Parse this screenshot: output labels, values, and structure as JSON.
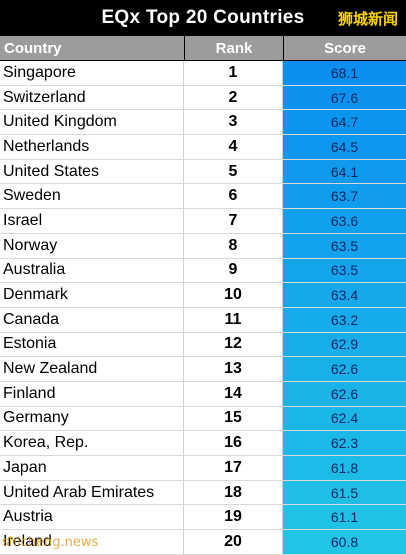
{
  "title": "EQx Top 20 Countries",
  "badge": "狮城新闻",
  "watermark": "shicheng.news",
  "colors": {
    "score_top": "#0a8ff0",
    "score_bottom": "#20c4e4",
    "header_bg": "#9c9c9c"
  },
  "chart_data": {
    "type": "table",
    "title": "EQx Top 20 Countries",
    "columns": [
      "Country",
      "Rank",
      "Score"
    ],
    "rows": [
      {
        "country": "Singapore",
        "rank": "1",
        "score": "68.1"
      },
      {
        "country": "Switzerland",
        "rank": "2",
        "score": "67.6"
      },
      {
        "country": "United Kingdom",
        "rank": "3",
        "score": "64.7"
      },
      {
        "country": "Netherlands",
        "rank": "4",
        "score": "64.5"
      },
      {
        "country": "United States",
        "rank": "5",
        "score": "64.1"
      },
      {
        "country": "Sweden",
        "rank": "6",
        "score": "63.7"
      },
      {
        "country": "Israel",
        "rank": "7",
        "score": "63.6"
      },
      {
        "country": "Norway",
        "rank": "8",
        "score": "63.5"
      },
      {
        "country": "Australia",
        "rank": "9",
        "score": "63.5"
      },
      {
        "country": "Denmark",
        "rank": "10",
        "score": "63.4"
      },
      {
        "country": "Canada",
        "rank": "11",
        "score": "63.2"
      },
      {
        "country": "Estonia",
        "rank": "12",
        "score": "62.9"
      },
      {
        "country": "New Zealand",
        "rank": "13",
        "score": "62.6"
      },
      {
        "country": "Finland",
        "rank": "14",
        "score": "62.6"
      },
      {
        "country": "Germany",
        "rank": "15",
        "score": "62.4"
      },
      {
        "country": "Korea, Rep.",
        "rank": "16",
        "score": "62.3"
      },
      {
        "country": "Japan",
        "rank": "17",
        "score": "61.8"
      },
      {
        "country": "United Arab Emirates",
        "rank": "18",
        "score": "61.5"
      },
      {
        "country": "Austria",
        "rank": "19",
        "score": "61.1"
      },
      {
        "country": "Ireland",
        "rank": "20",
        "score": "60.8"
      }
    ]
  }
}
